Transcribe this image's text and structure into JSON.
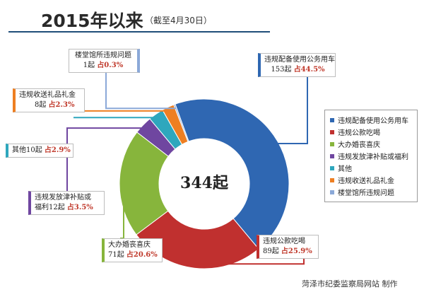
{
  "header": {
    "title": "2015年以来",
    "subtitle": "（截至4月30日）"
  },
  "chart_data": {
    "type": "pie",
    "donut": true,
    "total_label": "344起",
    "categories": [
      "违规配备使用公务用车",
      "违规公款吃喝",
      "大办婚丧喜庆",
      "违规发放津补贴或福利",
      "其他",
      "违规收送礼品礼金",
      "楼堂馆所违规问题"
    ],
    "values": [
      153,
      89,
      71,
      12,
      10,
      8,
      1
    ],
    "percent_labels": [
      "占44.5%",
      "占25.9%",
      "占20.6%",
      "占3.5%",
      "占2.9%",
      "占2.3%",
      "占0.3%"
    ],
    "colors": [
      "#2f67b2",
      "#c0302f",
      "#87b53c",
      "#6f46a0",
      "#2ea7bd",
      "#ee7f22",
      "#8ba9d8"
    ],
    "legend_position": "right"
  },
  "callouts": {
    "car": {
      "line1": "违规配备使用公务用车",
      "line2a": "153起 ",
      "line2b": "占44.5%"
    },
    "eat": {
      "line1": "违规公款吃喝",
      "line2a": "89起 ",
      "line2b": "占25.9%"
    },
    "wedding": {
      "line1": "大办婚丧喜庆",
      "line2a": "71起 ",
      "line2b": "占20.6%"
    },
    "subsidy": {
      "line1": "违规发放津补贴或",
      "line2a": "福利12起 ",
      "line2b": "占3.5%"
    },
    "other": {
      "line1a": "其他10起 ",
      "line1b": "占2.9%"
    },
    "gift": {
      "line1": "违规收送礼品礼金",
      "line2a": "8起 ",
      "line2b": "占2.3%"
    },
    "building": {
      "line1": "楼堂馆所违规问题",
      "line2a": "1起 ",
      "line2b": "占0.3%"
    }
  },
  "credit": "菏泽市纪委监察局网站 制作"
}
